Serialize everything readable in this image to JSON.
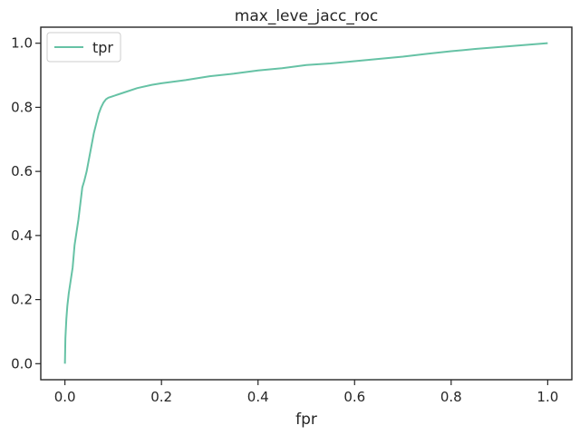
{
  "chart_data": {
    "type": "line",
    "title": "max_leve_jacc_roc",
    "xlabel": "fpr",
    "ylabel": "",
    "xlim": [
      -0.05,
      1.05
    ],
    "ylim": [
      -0.05,
      1.05
    ],
    "xticks": [
      0.0,
      0.2,
      0.4,
      0.6,
      0.8,
      1.0
    ],
    "yticks": [
      0.0,
      0.2,
      0.4,
      0.6,
      0.8,
      1.0
    ],
    "xtick_labels": [
      "0.0",
      "0.2",
      "0.4",
      "0.6",
      "0.8",
      "1.0"
    ],
    "ytick_labels": [
      "0.0",
      "0.2",
      "0.4",
      "0.6",
      "0.8",
      "1.0"
    ],
    "grid": false,
    "legend": "upper-left",
    "series": [
      {
        "name": "tpr",
        "color": "#66c2a5",
        "x": [
          0.0,
          0.001,
          0.003,
          0.005,
          0.008,
          0.012,
          0.016,
          0.02,
          0.024,
          0.028,
          0.032,
          0.036,
          0.04,
          0.045,
          0.05,
          0.055,
          0.06,
          0.065,
          0.07,
          0.075,
          0.08,
          0.085,
          0.09,
          0.1,
          0.12,
          0.15,
          0.18,
          0.2,
          0.25,
          0.3,
          0.35,
          0.4,
          0.45,
          0.5,
          0.55,
          0.6,
          0.65,
          0.7,
          0.75,
          0.8,
          0.85,
          0.9,
          0.95,
          1.0
        ],
        "y": [
          0.0,
          0.08,
          0.14,
          0.18,
          0.22,
          0.26,
          0.3,
          0.37,
          0.41,
          0.45,
          0.5,
          0.55,
          0.57,
          0.6,
          0.64,
          0.68,
          0.72,
          0.75,
          0.78,
          0.8,
          0.815,
          0.825,
          0.83,
          0.835,
          0.845,
          0.86,
          0.87,
          0.875,
          0.885,
          0.897,
          0.905,
          0.915,
          0.922,
          0.932,
          0.937,
          0.944,
          0.951,
          0.958,
          0.967,
          0.975,
          0.982,
          0.988,
          0.994,
          1.0
        ]
      }
    ]
  }
}
